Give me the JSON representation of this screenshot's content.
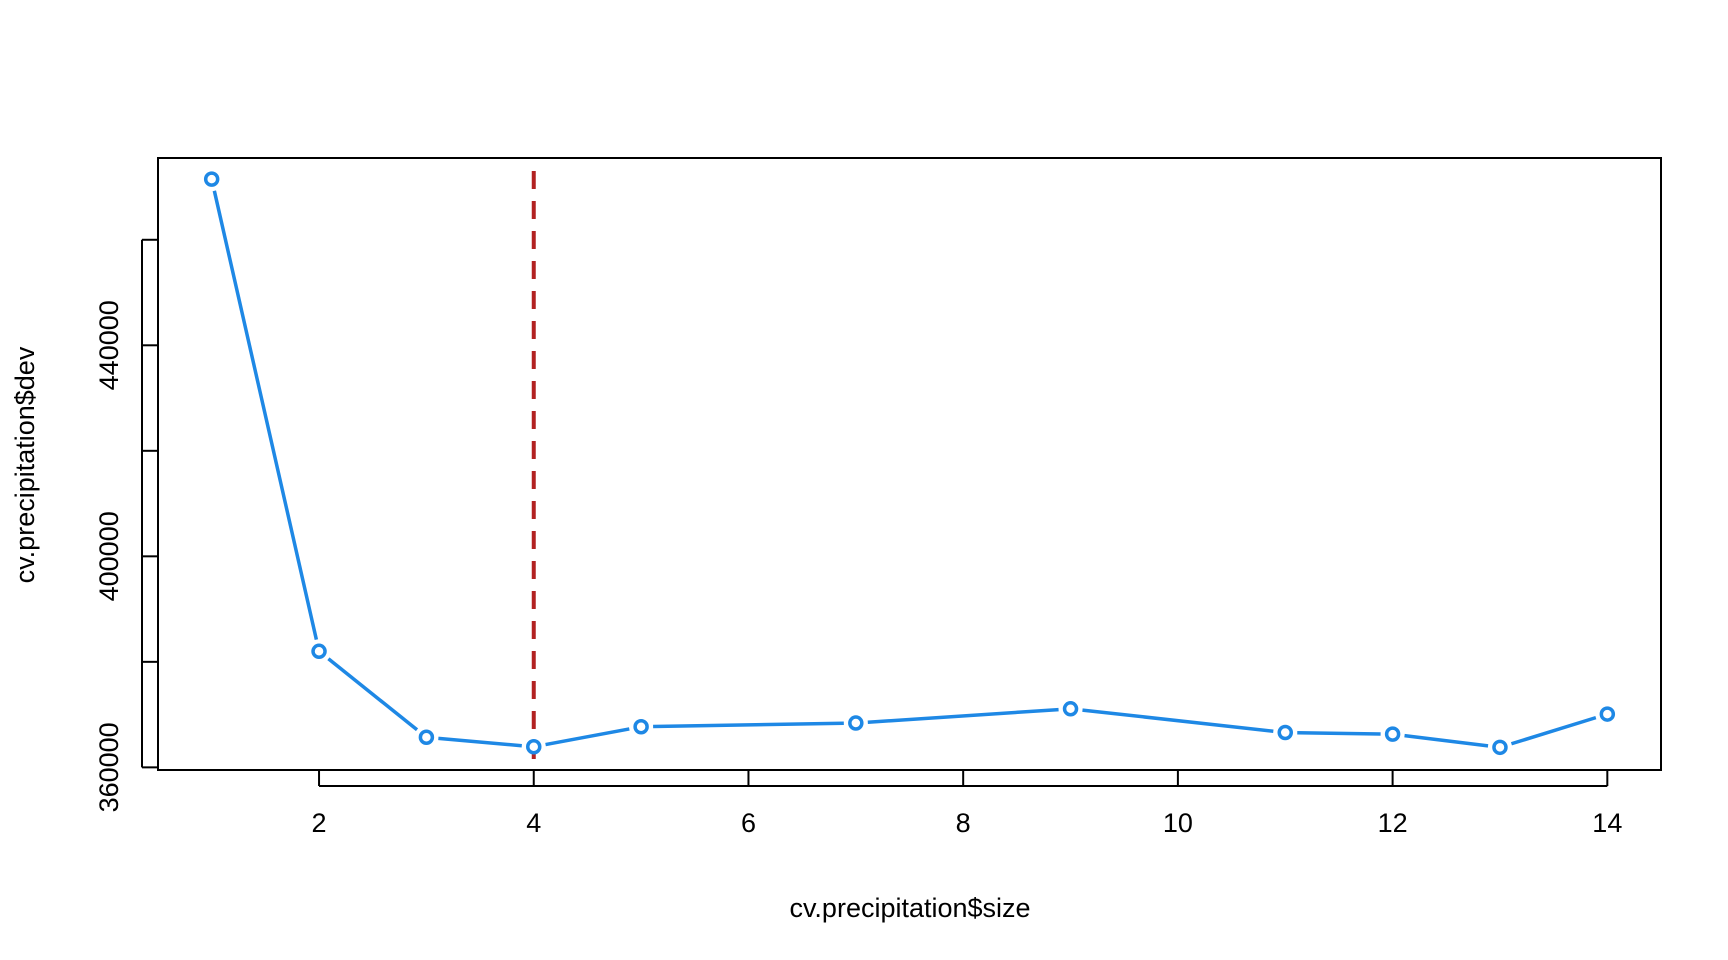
{
  "chart_data": {
    "type": "line",
    "xlabel": "cv.precipitation$size",
    "ylabel": "cv.precipitation$dev",
    "xlim": [
      0.5,
      14.5
    ],
    "ylim": [
      359500,
      475500
    ],
    "grid": false,
    "x_ticks": [
      {
        "value": 2,
        "label": "2"
      },
      {
        "value": 4,
        "label": "4"
      },
      {
        "value": 6,
        "label": "6"
      },
      {
        "value": 8,
        "label": "8"
      },
      {
        "value": 10,
        "label": "10"
      },
      {
        "value": 12,
        "label": "12"
      },
      {
        "value": 14,
        "label": "14"
      }
    ],
    "y_ticks": [
      {
        "value": 360000,
        "label": "360000"
      },
      {
        "value": 380000,
        "label": ""
      },
      {
        "value": 400000,
        "label": "400000"
      },
      {
        "value": 420000,
        "label": ""
      },
      {
        "value": 440000,
        "label": "440000"
      },
      {
        "value": 460000,
        "label": ""
      }
    ],
    "series": [
      {
        "color": "#1E88E5",
        "x": [
          1,
          2,
          3,
          4,
          5,
          7,
          9,
          11,
          12,
          13,
          14
        ],
        "y": [
          471500,
          382000,
          365700,
          363900,
          367700,
          368400,
          371100,
          366600,
          366300,
          363800,
          370100
        ]
      }
    ],
    "reference_line": {
      "axis": "x",
      "value": 4,
      "color": "#B22222",
      "style": "dashed"
    }
  }
}
